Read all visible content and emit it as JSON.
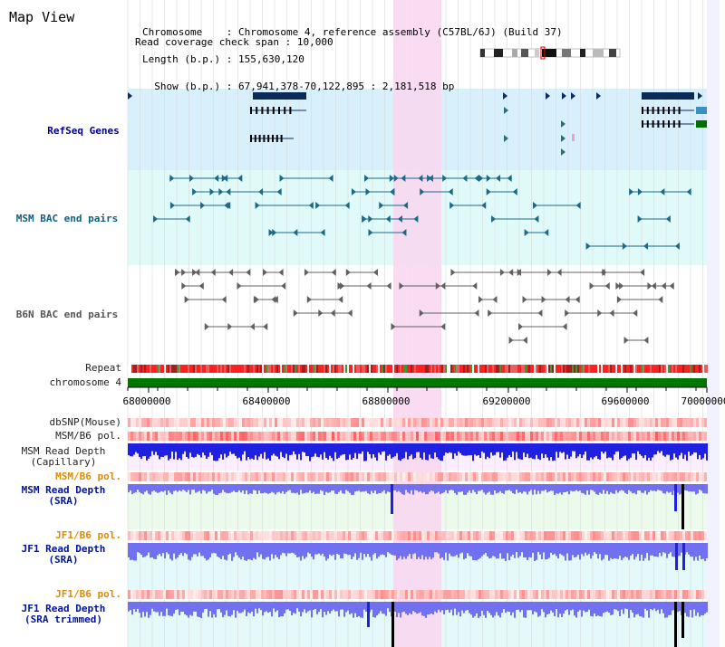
{
  "title": "Map View",
  "info": {
    "chromosome_label": "Chromosome",
    "chromosome_value": "Chromosome 4, reference assembly (C57BL/6J) (Build 37)",
    "length_label": "Length (b.p.)",
    "length_value": "155,630,120",
    "show_label": "Show (b.p.)",
    "show_value": "67,941,378-70,122,895 : 2,181,518 bp",
    "coverage_label": "Read coverage check span",
    "coverage_value": "10,000"
  },
  "tracks": {
    "refseq": "RefSeq Genes",
    "msm_bac": "MSM BAC end pairs",
    "b6n_bac": "B6N BAC end pairs",
    "repeat": "Repeat",
    "chromosome": "chromosome 4",
    "dbsnp": "dbSNP(Mouse)",
    "msm_b6_pol_1": "MSM/B6 pol.",
    "msm_depth_cap_1": "MSM Read Depth",
    "msm_depth_cap_2": "(Capillary)",
    "msm_b6_pol_2": "MSM/B6 pol.",
    "msm_depth_sra_1": "MSM Read Depth",
    "msm_depth_sra_2": "(SRA)",
    "jf1_b6_pol_1": "JF1/B6 pol.",
    "jf1_depth_sra_1": "JF1 Read Depth",
    "jf1_depth_sra_2": "(SRA)",
    "jf1_b6_pol_2": "JF1/B6 pol.",
    "jf1_depth_trim_1": "JF1 Read Depth",
    "jf1_depth_trim_2": "(SRA trimmed)"
  },
  "axis": {
    "ticks": [
      "68000000",
      "68400000",
      "68800000",
      "69200000",
      "69600000",
      "70000000"
    ]
  },
  "colors": {
    "refseq_bg": "#d8f0fc",
    "msm_bac_bg": "#e0fafa",
    "highlight": "#f8d8f0",
    "chromosome_bar": "#007700",
    "repeat_red": "#ff2020",
    "depth_blue": "#2020e0",
    "depth_light": "#7070f0"
  }
}
